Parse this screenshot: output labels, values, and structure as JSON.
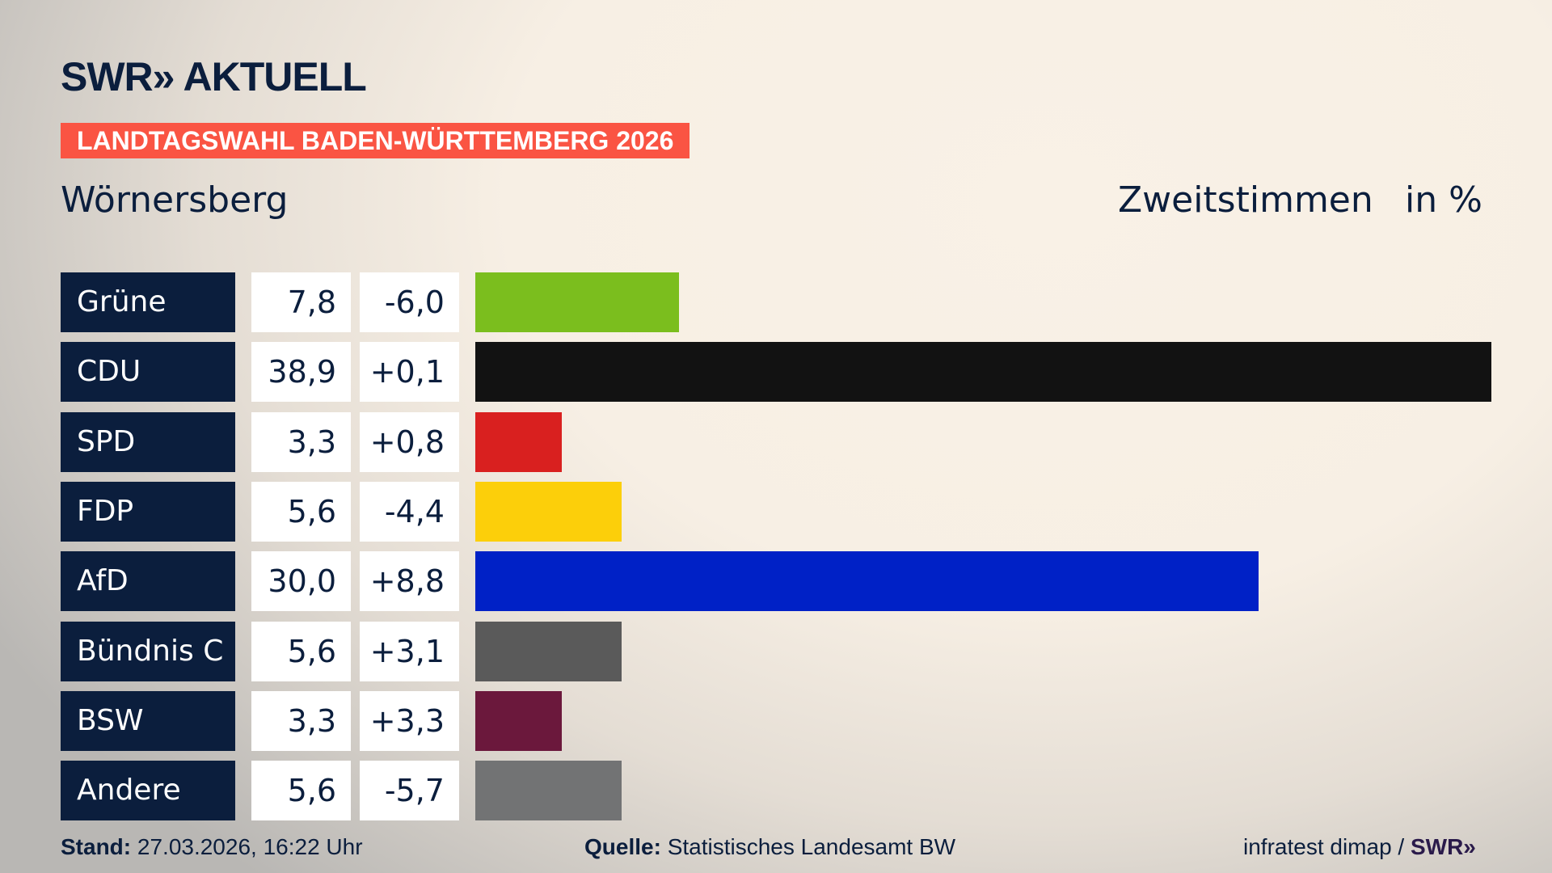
{
  "header": {
    "logo": "SWR» AKTUELL",
    "banner": "LANDTAGSWAHL BADEN-WÜRTTEMBERG 2026",
    "place": "Wörnersberg",
    "measure": "Zweitstimmen",
    "unit": "in %"
  },
  "colors": {
    "label_bg": "#0b1e3d",
    "banner": "#fa5443"
  },
  "chart_data": {
    "type": "bar",
    "orientation": "horizontal",
    "categories": [
      "Grüne",
      "CDU",
      "SPD",
      "FDP",
      "AfD",
      "Bündnis C",
      "BSW",
      "Andere"
    ],
    "values": [
      7.8,
      38.9,
      3.3,
      5.6,
      30.0,
      5.6,
      3.3,
      5.6
    ],
    "values_label": [
      "7,8",
      "38,9",
      "3,3",
      "5,6",
      "30,0",
      "5,6",
      "3,3",
      "5,6"
    ],
    "changes": [
      "-6,0",
      "+0,1",
      "+0,8",
      "-4,4",
      "+8,8",
      "+3,1",
      "+3,3",
      "-5,7"
    ],
    "colors": [
      "#7bbe1e",
      "#121212",
      "#d9201f",
      "#fccf0a",
      "#0021c6",
      "#5a5a5a",
      "#6b183c",
      "#727374"
    ],
    "xlim": [
      0,
      38.9
    ]
  },
  "footer": {
    "stand_label": "Stand:",
    "stand": "27.03.2026, 16:22 Uhr",
    "source_label": "Quelle:",
    "source": "Statistisches Landesamt BW",
    "credit": "infratest dimap / ",
    "credit_logo": "SWR»"
  }
}
